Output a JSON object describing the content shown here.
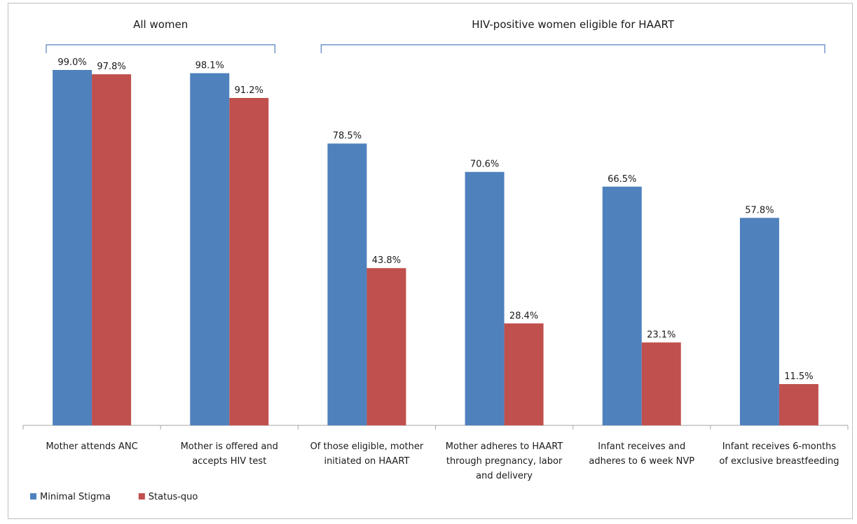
{
  "chart_data": {
    "type": "bar",
    "ylim": [
      0,
      100
    ],
    "categories": [
      [
        "Mother attends ANC"
      ],
      [
        "Mother is offered and",
        "accepts HIV test"
      ],
      [
        "Of those eligible, mother",
        "initiated on HAART"
      ],
      [
        "Mother adheres to HAART",
        "through pregnancy, labor",
        "and delivery"
      ],
      [
        "Infant receives and",
        "adheres to 6 week NVP"
      ],
      [
        "Infant receives 6-months",
        "of exclusive breastfeeding"
      ]
    ],
    "series": [
      {
        "name": "Minimal Stigma",
        "color": "#4f81bd",
        "values": [
          99.0,
          98.1,
          78.5,
          70.6,
          66.5,
          57.8
        ],
        "labels": [
          "99.0%",
          "98.1%",
          "78.5%",
          "70.6%",
          "66.5%",
          "57.8%"
        ]
      },
      {
        "name": "Status-quo",
        "color": "#c0504d",
        "values": [
          97.8,
          91.2,
          43.8,
          28.4,
          23.1,
          11.5
        ],
        "labels": [
          "97.8%",
          "91.2%",
          "43.8%",
          "28.4%",
          "23.1%",
          "11.5%"
        ]
      }
    ],
    "groups": [
      {
        "label": "All women",
        "from_category": 0,
        "to_category": 1
      },
      {
        "label": "HIV-positive women eligible for HAART",
        "from_category": 2,
        "to_category": 5
      }
    ],
    "legend_position": "bottom-left",
    "grid": false
  }
}
